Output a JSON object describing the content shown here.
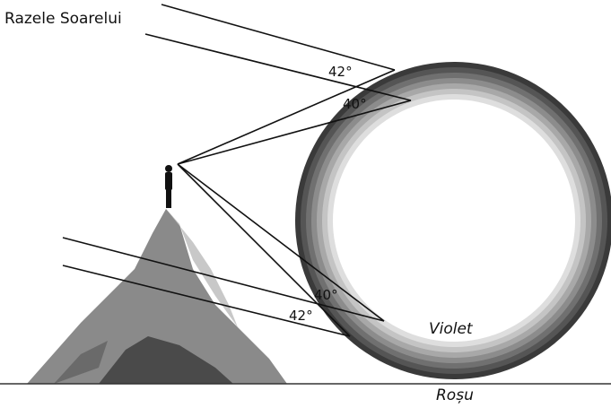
{
  "caption": "Razele Soarelui",
  "angles": {
    "top_outer": "42°",
    "top_inner": "40°",
    "bottom_inner": "40°",
    "bottom_outer": "42°"
  },
  "bands": {
    "inner": "Violet",
    "outer": "Roșu"
  }
}
